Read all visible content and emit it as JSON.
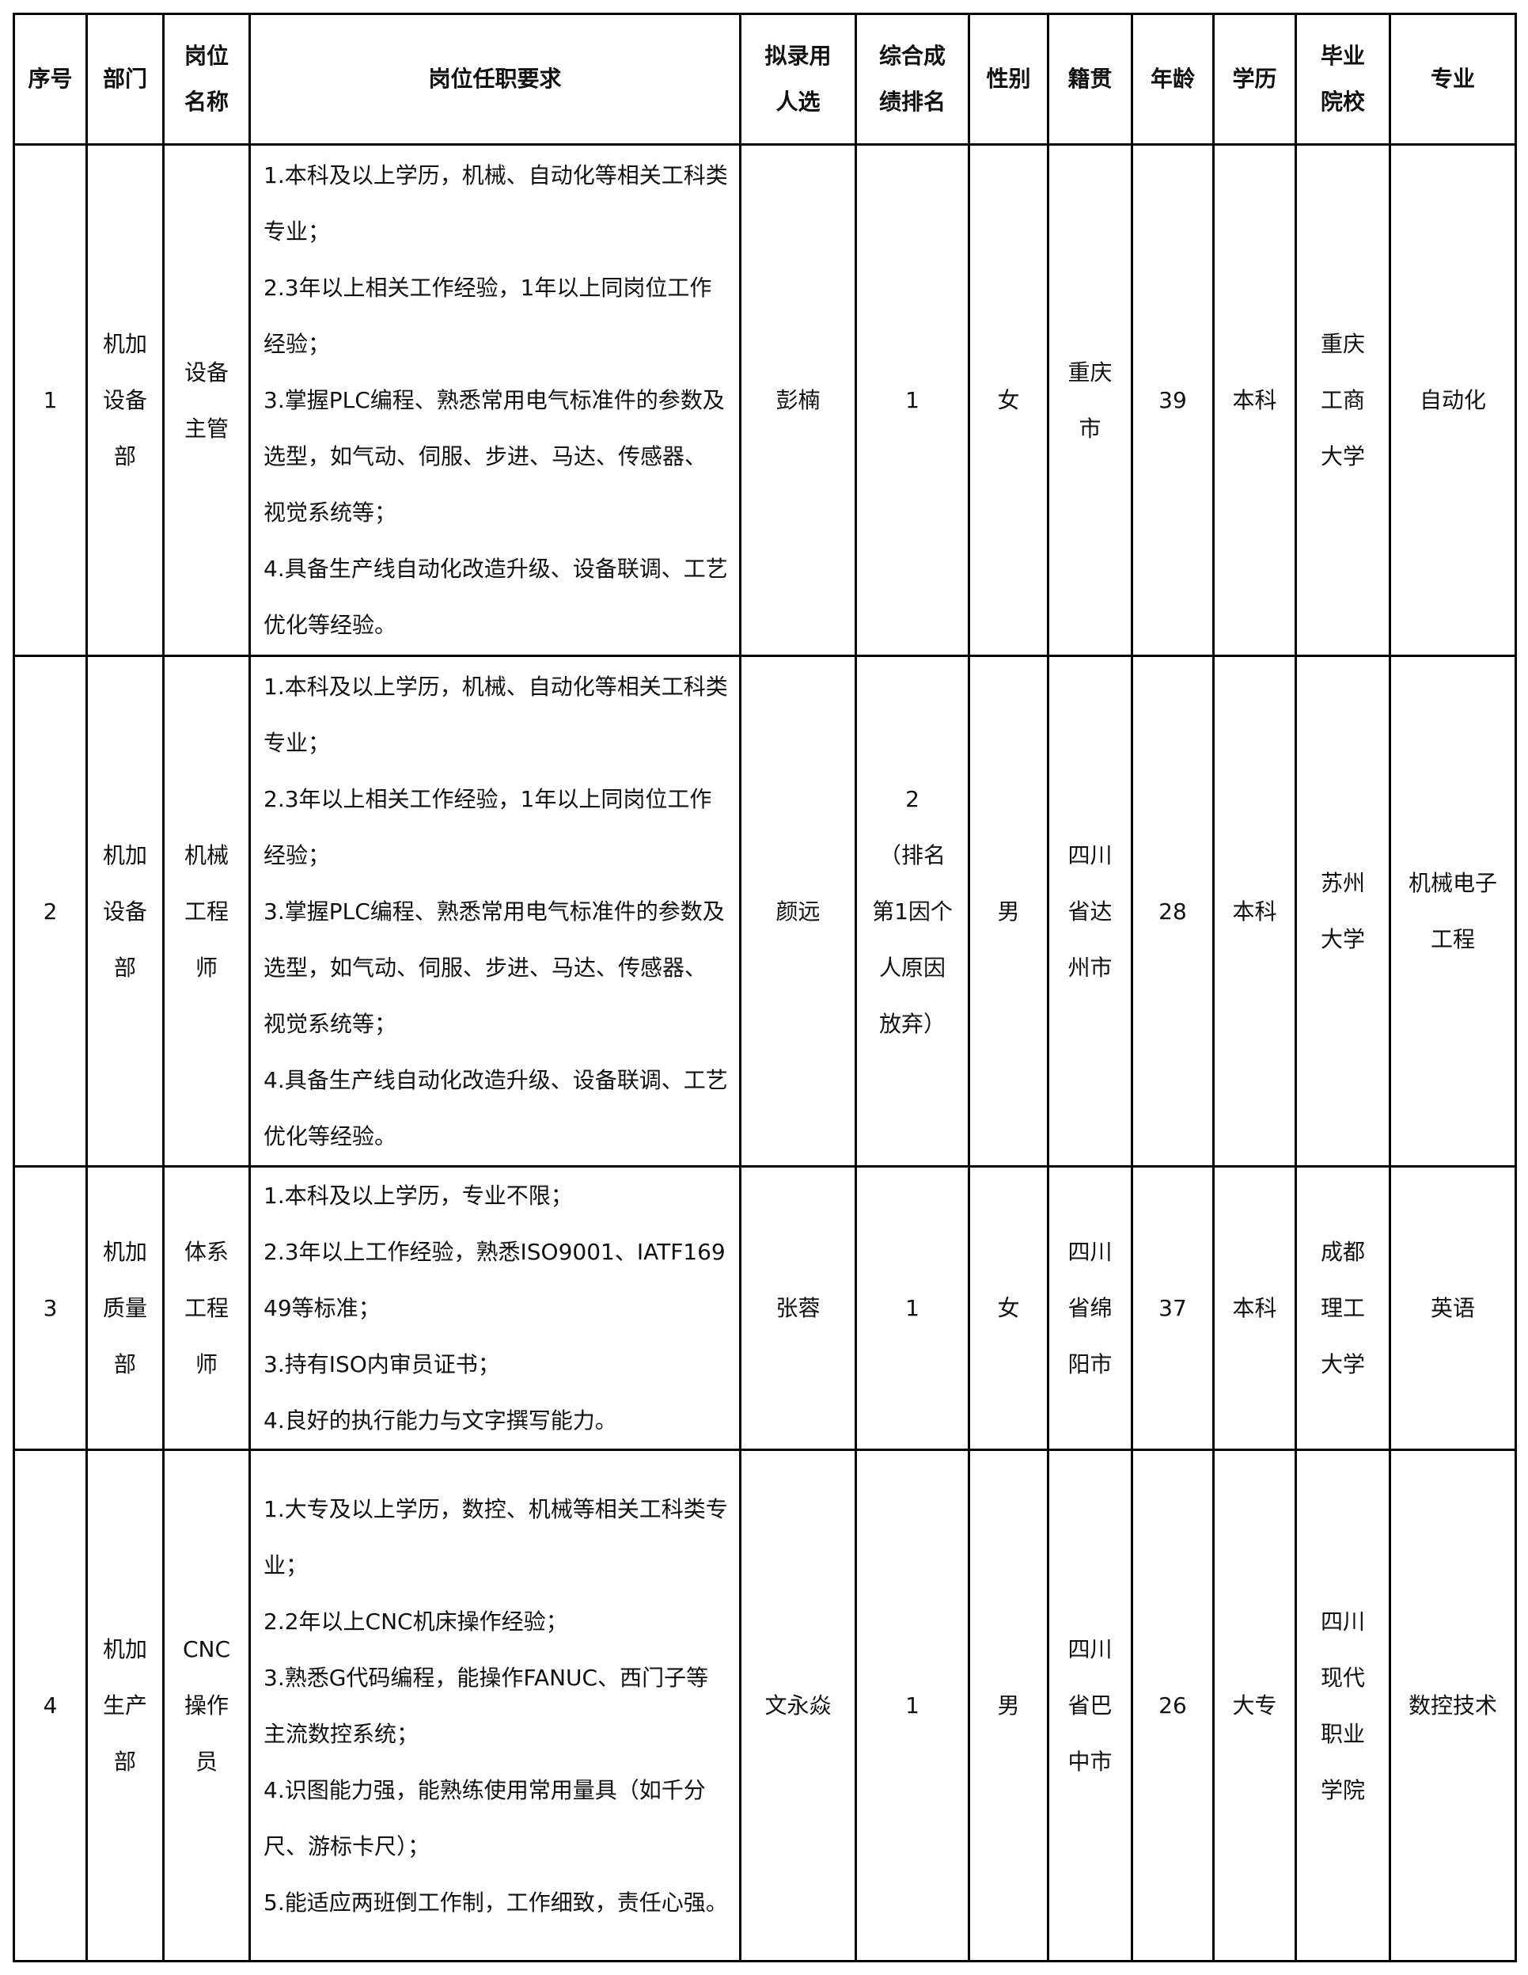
{
  "headers": [
    "序号",
    "部门",
    "岗位\n名称",
    "岗位任职要求",
    "拟录用\n人选",
    "综合成\n绩排名",
    "性别",
    "籍贯",
    "年龄",
    "学历",
    "毕业\n院校",
    "专业"
  ],
  "rows": [
    {
      "no": "1",
      "dept": "机加\n设备\n部",
      "position": "设备\n主管",
      "requirements": [
        "1.本科及以上学历，机械、自动化等相关工科类专业；",
        "2.3年以上相关工作经验，1年以上同岗位工作经验；",
        "3.掌握PLC编程、熟悉常用电气标准件的参数及选型，如气动、伺服、步进、马达、传感器、视觉系统等；",
        "4.具备生产线自动化改造升级、设备联调、工艺优化等经验。"
      ],
      "candidate": "彭楠",
      "rank": "1",
      "gender": "女",
      "origin": "重庆\n市",
      "age": "39",
      "education": "本科",
      "school": "重庆\n工商\n大学",
      "major": "自动化"
    },
    {
      "no": "2",
      "dept": "机加\n设备\n部",
      "position": "机械\n工程\n师",
      "requirements": [
        "1.本科及以上学历，机械、自动化等相关工科类专业；",
        "2.3年以上相关工作经验，1年以上同岗位工作经验；",
        "3.掌握PLC编程、熟悉常用电气标准件的参数及选型，如气动、伺服、步进、马达、传感器、视觉系统等；",
        "4.具备生产线自动化改造升级、设备联调、工艺优化等经验。"
      ],
      "candidate": "颜远",
      "rank": "2\n（排名\n第1因个\n人原因\n放弃）",
      "gender": "男",
      "origin": "四川\n省达\n州市",
      "age": "28",
      "education": "本科",
      "school": "苏州\n大学",
      "major": "机械电子\n工程"
    },
    {
      "no": "3",
      "dept": "机加\n质量\n部",
      "position": "体系\n工程\n师",
      "requirements": [
        "1.本科及以上学历，专业不限；",
        "2.3年以上工作经验，熟悉ISO9001、IATF16949等标准；",
        "3.持有ISO内审员证书；",
        "4.良好的执行能力与文字撰写能力。"
      ],
      "candidate": "张蓉",
      "rank": "1",
      "gender": "女",
      "origin": "四川\n省绵\n阳市",
      "age": "37",
      "education": "本科",
      "school": "成都\n理工\n大学",
      "major": "英语"
    },
    {
      "no": "4",
      "dept": "机加\n生产\n部",
      "position": "CNC\n操作\n员",
      "requirements": [
        "1.大专及以上学历，数控、机械等相关工科类专业；",
        "2.2年以上CNC机床操作经验；",
        "3.熟悉G代码编程，能操作FANUC、西门子等主流数控系统；",
        "4.识图能力强，能熟练使用常用量具（如千分尺、游标卡尺）；",
        "5.能适应两班倒工作制，工作细致，责任心强。"
      ],
      "candidate": "文永焱",
      "rank": "1",
      "gender": "男",
      "origin": "四川\n省巴\n中市",
      "age": "26",
      "education": "大专",
      "school": "四川\n现代\n职业\n学院",
      "major": "数控技术"
    }
  ]
}
